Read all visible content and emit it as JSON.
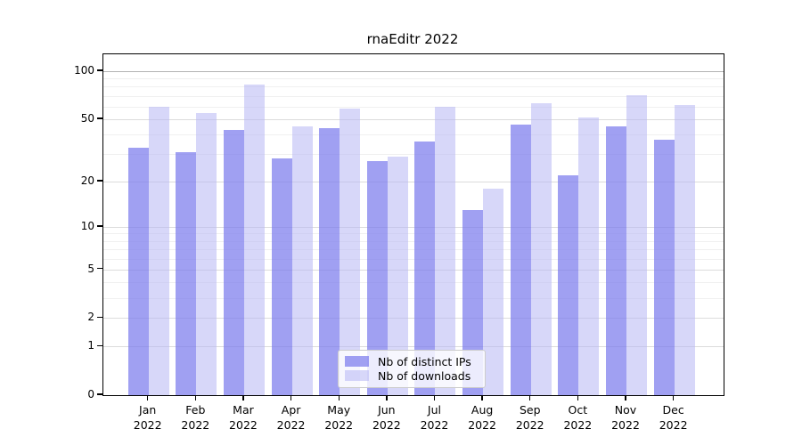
{
  "title": "rnaEditr 2022",
  "chart_data": {
    "type": "bar",
    "title": "rnaEditr 2022",
    "categories": [
      "Jan",
      "Feb",
      "Mar",
      "Apr",
      "May",
      "Jun",
      "Jul",
      "Aug",
      "Sep",
      "Oct",
      "Nov",
      "Dec"
    ],
    "year": "2022",
    "series": [
      {
        "name": "Nb of distinct IPs",
        "color": "rgba(123,123,237,0.72)",
        "values": [
          33,
          31,
          43,
          28,
          44,
          27,
          36,
          13,
          46,
          22,
          45,
          37
        ]
      },
      {
        "name": "Nb of downloads",
        "color": "rgba(183,183,244,0.55)",
        "values": [
          60,
          55,
          82,
          45,
          58,
          29,
          60,
          18,
          63,
          51,
          71,
          61
        ]
      }
    ],
    "xlabel": "",
    "ylabel": "",
    "yscale": "log1p",
    "ylim": [
      0,
      127.5
    ],
    "yticks": [
      0,
      1,
      2,
      5,
      10,
      20,
      50,
      100
    ],
    "minor_yticks": [
      3,
      4,
      6,
      7,
      8,
      9,
      30,
      40,
      60,
      70,
      80,
      90
    ],
    "grid": true,
    "legend_position": "lower center",
    "colors": {
      "grid_major": "#dcdcdc",
      "grid_minor": "#f0f0f0",
      "grid_top_emphasis": "#b3b3b3",
      "axis": "#000000"
    }
  },
  "legend": {
    "items": [
      {
        "label": "Nb of distinct IPs"
      },
      {
        "label": "Nb of downloads"
      }
    ]
  }
}
